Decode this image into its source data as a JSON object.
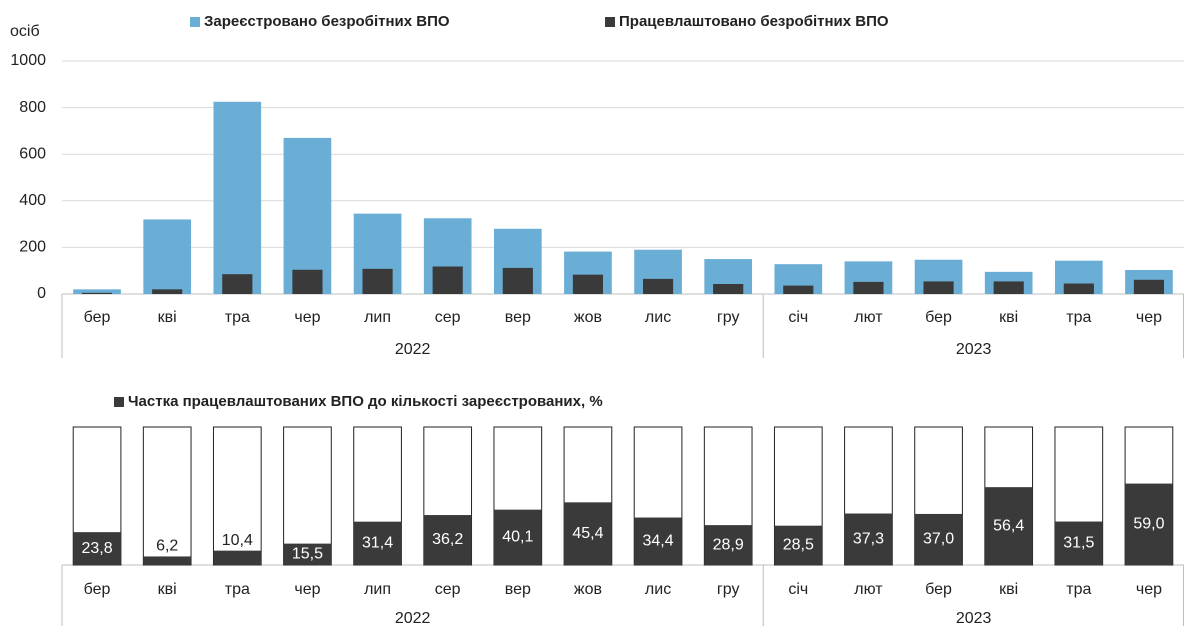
{
  "chart_data": [
    {
      "type": "bar",
      "y_label": "осіб",
      "groups": [
        {
          "label": "2022",
          "categories": [
            "бер",
            "кві",
            "тра",
            "чер",
            "лип",
            "сер",
            "вер",
            "жов",
            "лис",
            "гру"
          ]
        },
        {
          "label": "2023",
          "categories": [
            "січ",
            "лют",
            "бер",
            "кві",
            "тра",
            "чер"
          ]
        }
      ],
      "series": [
        {
          "name": "Зареєстровано безробітних ВПО",
          "color": "#6aaed6",
          "values": [
            20,
            320,
            825,
            670,
            345,
            325,
            280,
            182,
            190,
            150,
            128,
            140,
            147,
            95,
            143,
            103
          ]
        },
        {
          "name": "Працевлаштовано безробітних ВПО",
          "color": "#3a3a3a",
          "values": [
            5,
            20,
            85,
            104,
            108,
            118,
            112,
            83,
            65,
            43,
            36,
            52,
            54,
            54,
            45,
            61
          ]
        }
      ],
      "ylim": [
        0,
        1000
      ],
      "yticks": [
        0,
        200,
        400,
        600,
        800,
        1000
      ],
      "grid": true
    },
    {
      "type": "percent_bar",
      "groups": [
        {
          "label": "2022",
          "categories": [
            "бер",
            "кві",
            "тра",
            "чер",
            "лип",
            "сер",
            "вер",
            "жов",
            "лис",
            "гру"
          ]
        },
        {
          "label": "2023",
          "categories": [
            "січ",
            "лют",
            "бер",
            "кві",
            "тра",
            "чер"
          ]
        }
      ],
      "series": [
        {
          "name": "Частка працевлаштованих ВПО до кількості зареєстрованих, %",
          "color": "#3a3a3a",
          "values": [
            23.8,
            6.2,
            10.4,
            15.5,
            31.4,
            36.2,
            40.1,
            45.4,
            34.4,
            28.9,
            28.5,
            37.3,
            37.0,
            56.4,
            31.5,
            59.0
          ],
          "value_labels": [
            "23,8",
            "6,2",
            "10,4",
            "15,5",
            "31,4",
            "36,2",
            "40,1",
            "45,4",
            "34,4",
            "28,9",
            "28,5",
            "37,3",
            "37,0",
            "56,4",
            "31,5",
            "59,0"
          ]
        }
      ],
      "ylim": [
        0,
        100
      ]
    }
  ]
}
